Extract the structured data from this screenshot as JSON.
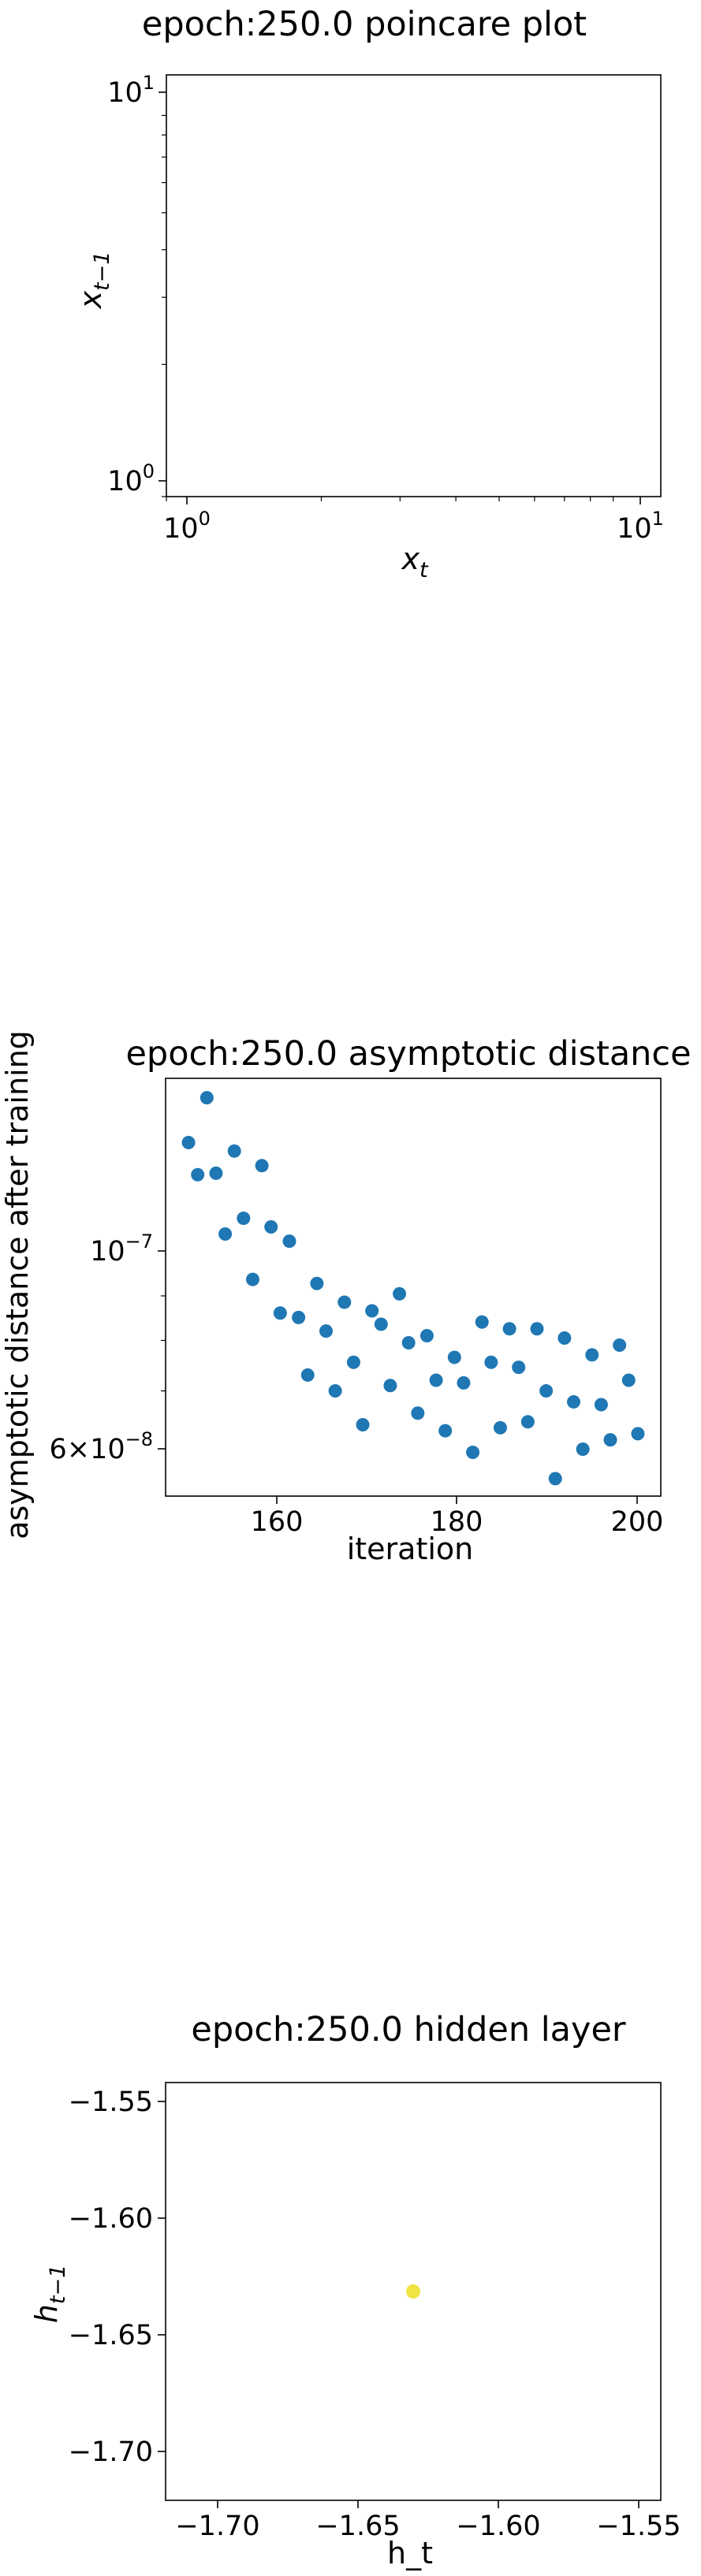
{
  "charts": {
    "poincare": {
      "title": "epoch:250.0 poincare plot",
      "xlabel_main": "x",
      "xlabel_sub": "t",
      "ylabel_main": "x",
      "ylabel_sub": "t−1",
      "xticks": [
        {
          "base": "10",
          "exp": "0"
        },
        {
          "base": "10",
          "exp": "1"
        }
      ],
      "yticks": [
        {
          "base": "10",
          "exp": "0"
        },
        {
          "base": "10",
          "exp": "1"
        }
      ]
    },
    "asymptotic": {
      "title": "epoch:250.0 asymptotic distance",
      "xlabel": "iteration",
      "ylabel": "asymptotic distance after training",
      "xticks": [
        "160",
        "180",
        "200"
      ],
      "yticks": [
        {
          "pre": "6×10",
          "exp": "−8"
        },
        {
          "pre": "10",
          "exp": "−7"
        }
      ]
    },
    "hidden": {
      "title": "epoch:250.0 hidden layer",
      "xlabel": "h_t",
      "ylabel_main": "h",
      "ylabel_sub": "t−1",
      "xticks": [
        "−1.70",
        "−1.65",
        "−1.60",
        "−1.55"
      ],
      "yticks": [
        "−1.55",
        "−1.60",
        "−1.65",
        "−1.70"
      ]
    }
  },
  "chart_data": [
    {
      "type": "scatter",
      "title": "epoch:250.0 poincare plot",
      "xlabel": "x_t",
      "ylabel": "x_{t-1}",
      "xscale": "log",
      "yscale": "log",
      "xlim": [
        0.9,
        11.5
      ],
      "ylim": [
        0.9,
        11.5
      ],
      "points": [],
      "grid": false
    },
    {
      "type": "scatter",
      "title": "epoch:250.0 asymptotic distance",
      "xlabel": "iteration",
      "ylabel": "asymptotic distance after training",
      "yscale": "log",
      "xlim": [
        147.5,
        201.5
      ],
      "ylim": [
        5.3e-08,
        1.6e-07
      ],
      "color": "#1f77b4",
      "grid": false,
      "x": [
        150,
        151,
        152,
        153,
        154,
        155,
        156,
        157,
        158,
        159,
        160,
        161,
        162,
        163,
        164,
        165,
        166,
        167,
        168,
        169,
        170,
        171,
        172,
        173,
        174,
        175,
        176,
        177,
        178,
        179,
        180,
        181,
        182,
        183,
        184,
        185,
        186,
        187,
        188,
        189,
        190,
        191,
        192,
        193,
        194,
        195,
        196,
        197,
        198,
        199
      ],
      "y": [
        1.35e-07,
        1.24e-07,
        1.52e-07,
        1.245e-07,
        1.06e-07,
        1.32e-07,
        1.105e-07,
        9.4e-08,
        1.27e-07,
        1.08e-07,
        8.6e-08,
        1.04e-07,
        8.5e-08,
        7.3e-08,
        9.3e-08,
        8.2e-08,
        7e-08,
        8.85e-08,
        7.55e-08,
        6.4e-08,
        8.65e-08,
        8.35e-08,
        7.1e-08,
        9.05e-08,
        7.95e-08,
        6.6e-08,
        8.1e-08,
        7.2e-08,
        6.3e-08,
        7.65e-08,
        7.15e-08,
        5.95e-08,
        8.4e-08,
        7.55e-08,
        6.35e-08,
        8.25e-08,
        7.45e-08,
        6.45e-08,
        8.25e-08,
        7e-08,
        5.55e-08,
        8.05e-08,
        6.8e-08,
        6e-08,
        7.7e-08,
        6.75e-08,
        6.15e-08,
        7.9e-08,
        7.2e-08,
        6.25e-08
      ]
    },
    {
      "type": "scatter",
      "title": "epoch:250.0 hidden layer",
      "xlabel": "h_t",
      "ylabel": "h_{t-1}",
      "xlim": [
        -1.722,
        -1.543
      ],
      "ylim": [
        -1.722,
        -1.543
      ],
      "color": "#f0e442",
      "grid": false,
      "x": [
        -1.6325
      ],
      "y": [
        -1.6325
      ]
    }
  ]
}
